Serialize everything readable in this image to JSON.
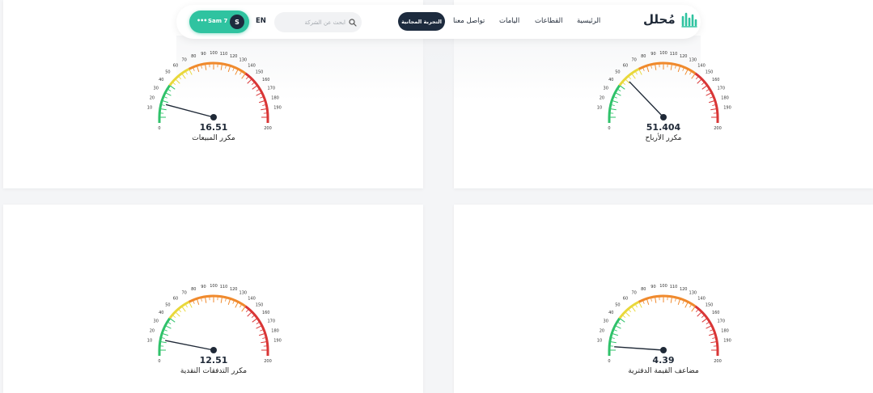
{
  "nav": {
    "logo": "مُحلل",
    "links": [
      "الرئيسية",
      "القطاعات",
      "اليامات",
      "تواصل معنا"
    ],
    "trial_button": "التجربة المجانية",
    "search_placeholder": "ابحث عن الشركة",
    "language": "EN",
    "user_name": "Sam 7",
    "user_initial": "S",
    "user_menu": "•••"
  },
  "gauge_scale": {
    "min": 0,
    "max": 200,
    "ticks": [
      0,
      10,
      20,
      30,
      40,
      50,
      60,
      70,
      80,
      90,
      100,
      110,
      120,
      130,
      140,
      150,
      160,
      170,
      180,
      190,
      200
    ],
    "color_bands": [
      {
        "from": 0,
        "to": 40,
        "color": "#2fc26a"
      },
      {
        "from": 40,
        "to": 70,
        "color": "#e9d83a"
      },
      {
        "from": 70,
        "to": 140,
        "color": "#f08a2d"
      },
      {
        "from": 140,
        "to": 200,
        "color": "#d93636"
      }
    ]
  },
  "gauges": [
    {
      "value_text": "51.404",
      "value": 51.404,
      "label": "مكرر الأرباح"
    },
    {
      "value_text": "16.51",
      "value": 16.51,
      "label": "مكرر المبيعات"
    },
    {
      "value_text": "4.39",
      "value": 4.39,
      "label": "مضاعف القيمة الدفترية"
    },
    {
      "value_text": "12.51",
      "value": 12.51,
      "label": "مكرر التدفقات النقدية"
    }
  ],
  "colors": {
    "accent": "#2fc3a0",
    "dark": "#1d2b3e",
    "needle": "#1f2937"
  }
}
